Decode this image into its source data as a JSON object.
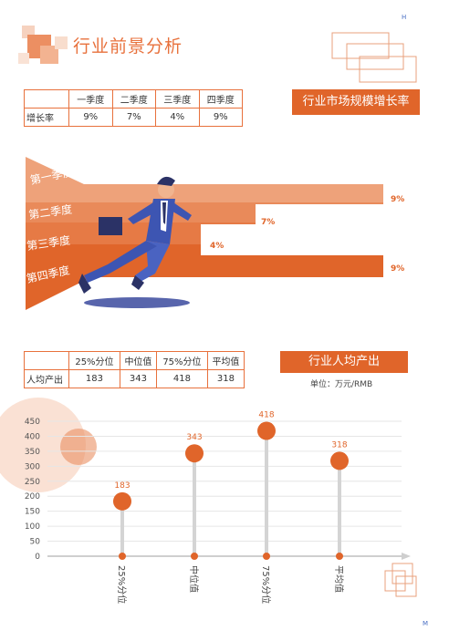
{
  "page": {
    "title": "行业前景分析",
    "corner_top": "H",
    "corner_bottom": "M"
  },
  "section1": {
    "banner": "行业市场规模增长率",
    "table": {
      "headers": [
        "",
        "一季度",
        "二季度",
        "三季度",
        "四季度"
      ],
      "rows": [
        [
          "增长率",
          "9%",
          "7%",
          "4%",
          "9%"
        ]
      ]
    },
    "funnel": {
      "bands": [
        {
          "label": "第一季度",
          "value": "9%"
        },
        {
          "label": "第二季度",
          "value": "7%"
        },
        {
          "label": "第三季度",
          "value": "4%"
        },
        {
          "label": "第四季度",
          "value": "9%"
        }
      ],
      "colors": [
        "#eea27a",
        "#e98a5a",
        "#e67a45",
        "#e0652a"
      ]
    }
  },
  "section2": {
    "banner": "行业人均产出",
    "unit": "单位：万元/RMB",
    "table": {
      "headers": [
        "",
        "25%分位",
        "中位值",
        "75%分位",
        "平均值"
      ],
      "rows": [
        [
          "人均产出",
          "183",
          "343",
          "418",
          "318"
        ]
      ]
    }
  },
  "colors": {
    "accent": "#e0652a",
    "light_accent": "#f3c1a6"
  },
  "chart_data": {
    "type": "lollipop",
    "categories": [
      "25%分位",
      "中位值",
      "75%分位",
      "平均值"
    ],
    "values": [
      183,
      343,
      418,
      318
    ],
    "yticks": [
      0,
      50,
      100,
      150,
      200,
      250,
      300,
      350,
      400,
      450
    ],
    "ylim": [
      0,
      450
    ],
    "grid": true
  }
}
